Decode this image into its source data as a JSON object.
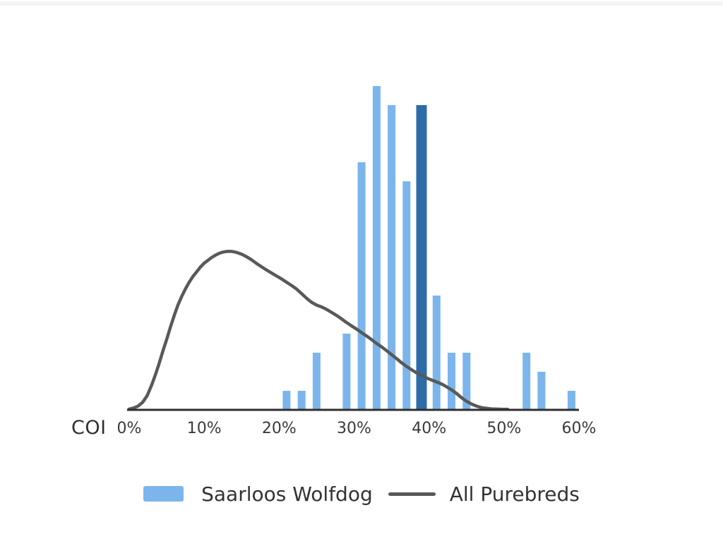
{
  "page": {
    "background": "#ffffff",
    "top_strip_color": "#f4f4f5"
  },
  "chart_data": {
    "type": "bar",
    "subtype": "histogram-with-density-overlay",
    "title": "",
    "xlabel": "COI",
    "ylabel": "",
    "x_unit": "%",
    "xlim": [
      0,
      60
    ],
    "ylim": [
      0,
      17.5
    ],
    "y_axis_visible": false,
    "grid": false,
    "axis_color": "#2f2f2f",
    "x_ticks": [
      {
        "pct": 0,
        "label": "0%"
      },
      {
        "pct": 10,
        "label": "10%"
      },
      {
        "pct": 20,
        "label": "20%"
      },
      {
        "pct": 30,
        "label": "30%"
      },
      {
        "pct": 40,
        "label": "40%"
      },
      {
        "pct": 50,
        "label": "50%"
      },
      {
        "pct": 60,
        "label": "60%"
      }
    ],
    "series": [
      {
        "name": "Saarloos Wolfdog",
        "type": "bar",
        "color": "#7CB5EC",
        "highlight_color": "#2E6CA9",
        "bars": [
          {
            "coi_pct": 21,
            "value": 1,
            "highlight": false
          },
          {
            "coi_pct": 23,
            "value": 1,
            "highlight": false
          },
          {
            "coi_pct": 25,
            "value": 3,
            "highlight": false
          },
          {
            "coi_pct": 29,
            "value": 4,
            "highlight": false
          },
          {
            "coi_pct": 31,
            "value": 13,
            "highlight": false
          },
          {
            "coi_pct": 33,
            "value": 17,
            "highlight": false
          },
          {
            "coi_pct": 35,
            "value": 16,
            "highlight": false
          },
          {
            "coi_pct": 37,
            "value": 12,
            "highlight": false
          },
          {
            "coi_pct": 39,
            "value": 16,
            "highlight": true
          },
          {
            "coi_pct": 41,
            "value": 6,
            "highlight": false
          },
          {
            "coi_pct": 43,
            "value": 3,
            "highlight": false
          },
          {
            "coi_pct": 45,
            "value": 3,
            "highlight": false
          },
          {
            "coi_pct": 53,
            "value": 3,
            "highlight": false
          },
          {
            "coi_pct": 55,
            "value": 2,
            "highlight": false
          },
          {
            "coi_pct": 59,
            "value": 1,
            "highlight": false
          }
        ]
      },
      {
        "name": "All Purebreds",
        "type": "line",
        "color": "#58595B",
        "points": [
          [
            0,
            0.04
          ],
          [
            0.6,
            0.1
          ],
          [
            1.2,
            0.2
          ],
          [
            1.8,
            0.4
          ],
          [
            2.4,
            0.75
          ],
          [
            3,
            1.3
          ],
          [
            3.5,
            1.85
          ],
          [
            4,
            2.45
          ],
          [
            4.5,
            3.1
          ],
          [
            5,
            3.7
          ],
          [
            5.5,
            4.35
          ],
          [
            6,
            4.95
          ],
          [
            6.5,
            5.5
          ],
          [
            7,
            5.95
          ],
          [
            7.5,
            6.35
          ],
          [
            8,
            6.7
          ],
          [
            8.5,
            7.0
          ],
          [
            9,
            7.25
          ],
          [
            9.5,
            7.5
          ],
          [
            10,
            7.7
          ],
          [
            10.5,
            7.85
          ],
          [
            11,
            8.0
          ],
          [
            11.5,
            8.12
          ],
          [
            12,
            8.22
          ],
          [
            12.5,
            8.28
          ],
          [
            13,
            8.32
          ],
          [
            13.7,
            8.32
          ],
          [
            14.3,
            8.27
          ],
          [
            15,
            8.17
          ],
          [
            15.7,
            8.03
          ],
          [
            16.3,
            7.88
          ],
          [
            17,
            7.68
          ],
          [
            17.7,
            7.5
          ],
          [
            18.3,
            7.35
          ],
          [
            19,
            7.18
          ],
          [
            19.7,
            7.02
          ],
          [
            20.3,
            6.88
          ],
          [
            21,
            6.7
          ],
          [
            21.7,
            6.52
          ],
          [
            22.3,
            6.35
          ],
          [
            23,
            6.1
          ],
          [
            23.7,
            5.85
          ],
          [
            24.3,
            5.65
          ],
          [
            25,
            5.5
          ],
          [
            25.7,
            5.4
          ],
          [
            26.3,
            5.28
          ],
          [
            27,
            5.12
          ],
          [
            27.7,
            4.95
          ],
          [
            28.3,
            4.78
          ],
          [
            29,
            4.58
          ],
          [
            29.7,
            4.4
          ],
          [
            30.3,
            4.25
          ],
          [
            31,
            4.05
          ],
          [
            31.7,
            3.87
          ],
          [
            32.3,
            3.7
          ],
          [
            33,
            3.48
          ],
          [
            33.7,
            3.3
          ],
          [
            34.3,
            3.12
          ],
          [
            35,
            2.9
          ],
          [
            35.7,
            2.68
          ],
          [
            36.3,
            2.48
          ],
          [
            37,
            2.28
          ],
          [
            37.7,
            2.1
          ],
          [
            38.3,
            1.95
          ],
          [
            39,
            1.82
          ],
          [
            39.7,
            1.67
          ],
          [
            40.3,
            1.57
          ],
          [
            41,
            1.47
          ],
          [
            41.7,
            1.35
          ],
          [
            42.3,
            1.22
          ],
          [
            43,
            1.05
          ],
          [
            43.7,
            0.85
          ],
          [
            44.3,
            0.65
          ],
          [
            45,
            0.45
          ],
          [
            45.7,
            0.3
          ],
          [
            46.3,
            0.2
          ],
          [
            47,
            0.12
          ],
          [
            47.7,
            0.08
          ],
          [
            48.3,
            0.05
          ],
          [
            49,
            0.04
          ],
          [
            50,
            0.03
          ],
          [
            50.5,
            0.03
          ]
        ]
      }
    ],
    "legend": {
      "position": "bottom-center",
      "items": [
        {
          "label": "Saarloos Wolfdog",
          "swatch": "rect",
          "color": "#7CB5EC"
        },
        {
          "label": "All Purebreds",
          "swatch": "line",
          "color": "#58595B"
        }
      ]
    }
  }
}
